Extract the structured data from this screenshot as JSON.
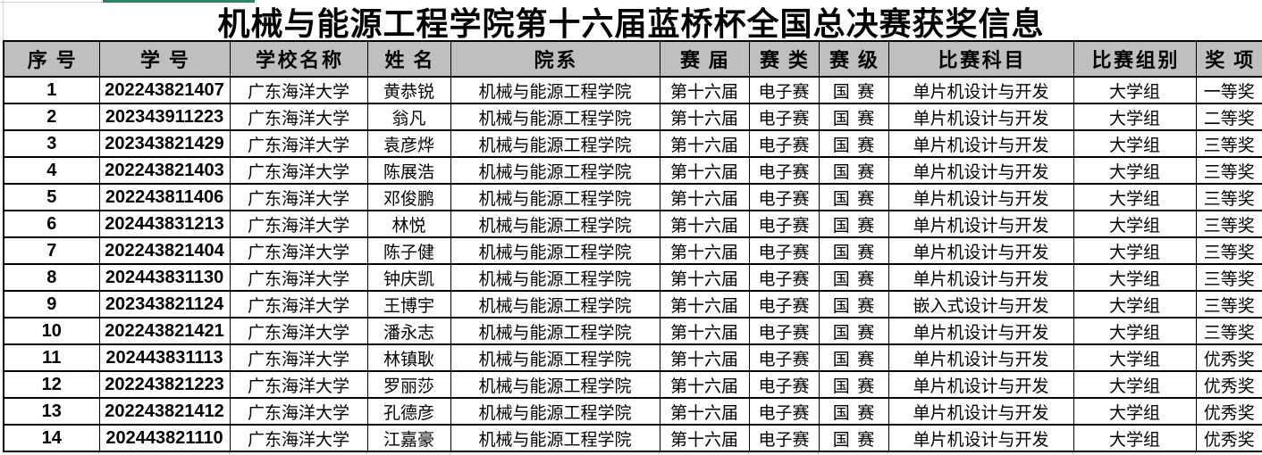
{
  "title": "机械与能源工程学院第十六届蓝桥杯全国总决赛获奖信息",
  "colors": {
    "header_bg": "#bfbfbf",
    "border": "#000000",
    "accent_bar": "#2a8566"
  },
  "table": {
    "headers": [
      "序号",
      "学号",
      "学校名称",
      "姓名",
      "院系",
      "赛届",
      "赛类",
      "赛级",
      "比赛科目",
      "比赛组别",
      "奖项"
    ],
    "rows": [
      [
        "1",
        "202243821407",
        "广东海洋大学",
        "黄恭锐",
        "机械与能源工程学院",
        "第十六届",
        "电子赛",
        "国赛",
        "单片机设计与开发",
        "大学组",
        "一等奖"
      ],
      [
        "2",
        "202343911223",
        "广东海洋大学",
        "翁凡",
        "机械与能源工程学院",
        "第十六届",
        "电子赛",
        "国赛",
        "单片机设计与开发",
        "大学组",
        "二等奖"
      ],
      [
        "3",
        "202343821429",
        "广东海洋大学",
        "袁彦烨",
        "机械与能源工程学院",
        "第十六届",
        "电子赛",
        "国赛",
        "单片机设计与开发",
        "大学组",
        "三等奖"
      ],
      [
        "4",
        "202243821403",
        "广东海洋大学",
        "陈展浩",
        "机械与能源工程学院",
        "第十六届",
        "电子赛",
        "国赛",
        "单片机设计与开发",
        "大学组",
        "三等奖"
      ],
      [
        "5",
        "202243811406",
        "广东海洋大学",
        "邓俊鹏",
        "机械与能源工程学院",
        "第十六届",
        "电子赛",
        "国赛",
        "单片机设计与开发",
        "大学组",
        "三等奖"
      ],
      [
        "6",
        "202443831213",
        "广东海洋大学",
        "林悦",
        "机械与能源工程学院",
        "第十六届",
        "电子赛",
        "国赛",
        "单片机设计与开发",
        "大学组",
        "三等奖"
      ],
      [
        "7",
        "202243821404",
        "广东海洋大学",
        "陈子健",
        "机械与能源工程学院",
        "第十六届",
        "电子赛",
        "国赛",
        "单片机设计与开发",
        "大学组",
        "三等奖"
      ],
      [
        "8",
        "202443831130",
        "广东海洋大学",
        "钟庆凯",
        "机械与能源工程学院",
        "第十六届",
        "电子赛",
        "国赛",
        "单片机设计与开发",
        "大学组",
        "三等奖"
      ],
      [
        "9",
        "202343821124",
        "广东海洋大学",
        "王博宇",
        "机械与能源工程学院",
        "第十六届",
        "电子赛",
        "国赛",
        "嵌入式设计与开发",
        "大学组",
        "三等奖"
      ],
      [
        "10",
        "202243821421",
        "广东海洋大学",
        "潘永志",
        "机械与能源工程学院",
        "第十六届",
        "电子赛",
        "国赛",
        "单片机设计与开发",
        "大学组",
        "三等奖"
      ],
      [
        "11",
        "202443831113",
        "广东海洋大学",
        "林镇耿",
        "机械与能源工程学院",
        "第十六届",
        "电子赛",
        "国赛",
        "单片机设计与开发",
        "大学组",
        "优秀奖"
      ],
      [
        "12",
        "202243821223",
        "广东海洋大学",
        "罗丽莎",
        "机械与能源工程学院",
        "第十六届",
        "电子赛",
        "国赛",
        "单片机设计与开发",
        "大学组",
        "优秀奖"
      ],
      [
        "13",
        "202243821412",
        "广东海洋大学",
        "孔德彦",
        "机械与能源工程学院",
        "第十六届",
        "电子赛",
        "国赛",
        "单片机设计与开发",
        "大学组",
        "优秀奖"
      ],
      [
        "14",
        "202443821110",
        "广东海洋大学",
        "江嘉豪",
        "机械与能源工程学院",
        "第十六届",
        "电子赛",
        "国赛",
        "单片机设计与开发",
        "大学组",
        "优秀奖"
      ]
    ]
  }
}
